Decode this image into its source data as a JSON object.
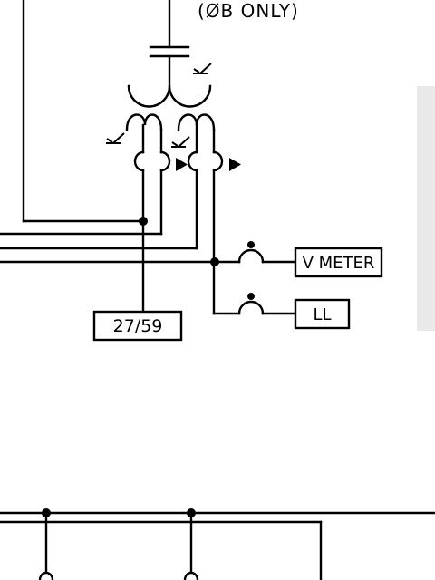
{
  "annotation": {
    "phase_note": "(ØB ONLY)"
  },
  "boxes": {
    "relay": "27/59",
    "voltmeter": "V METER",
    "line_load": "LL"
  },
  "colors": {
    "line": "#000000",
    "background": "#ffffff",
    "side_panel": "#e9e9e9"
  },
  "icons": [
    "capacitor-symbol",
    "transformer-winding",
    "ground-symbol",
    "fuse-symbol",
    "polarity-triangle",
    "junction-dot"
  ]
}
